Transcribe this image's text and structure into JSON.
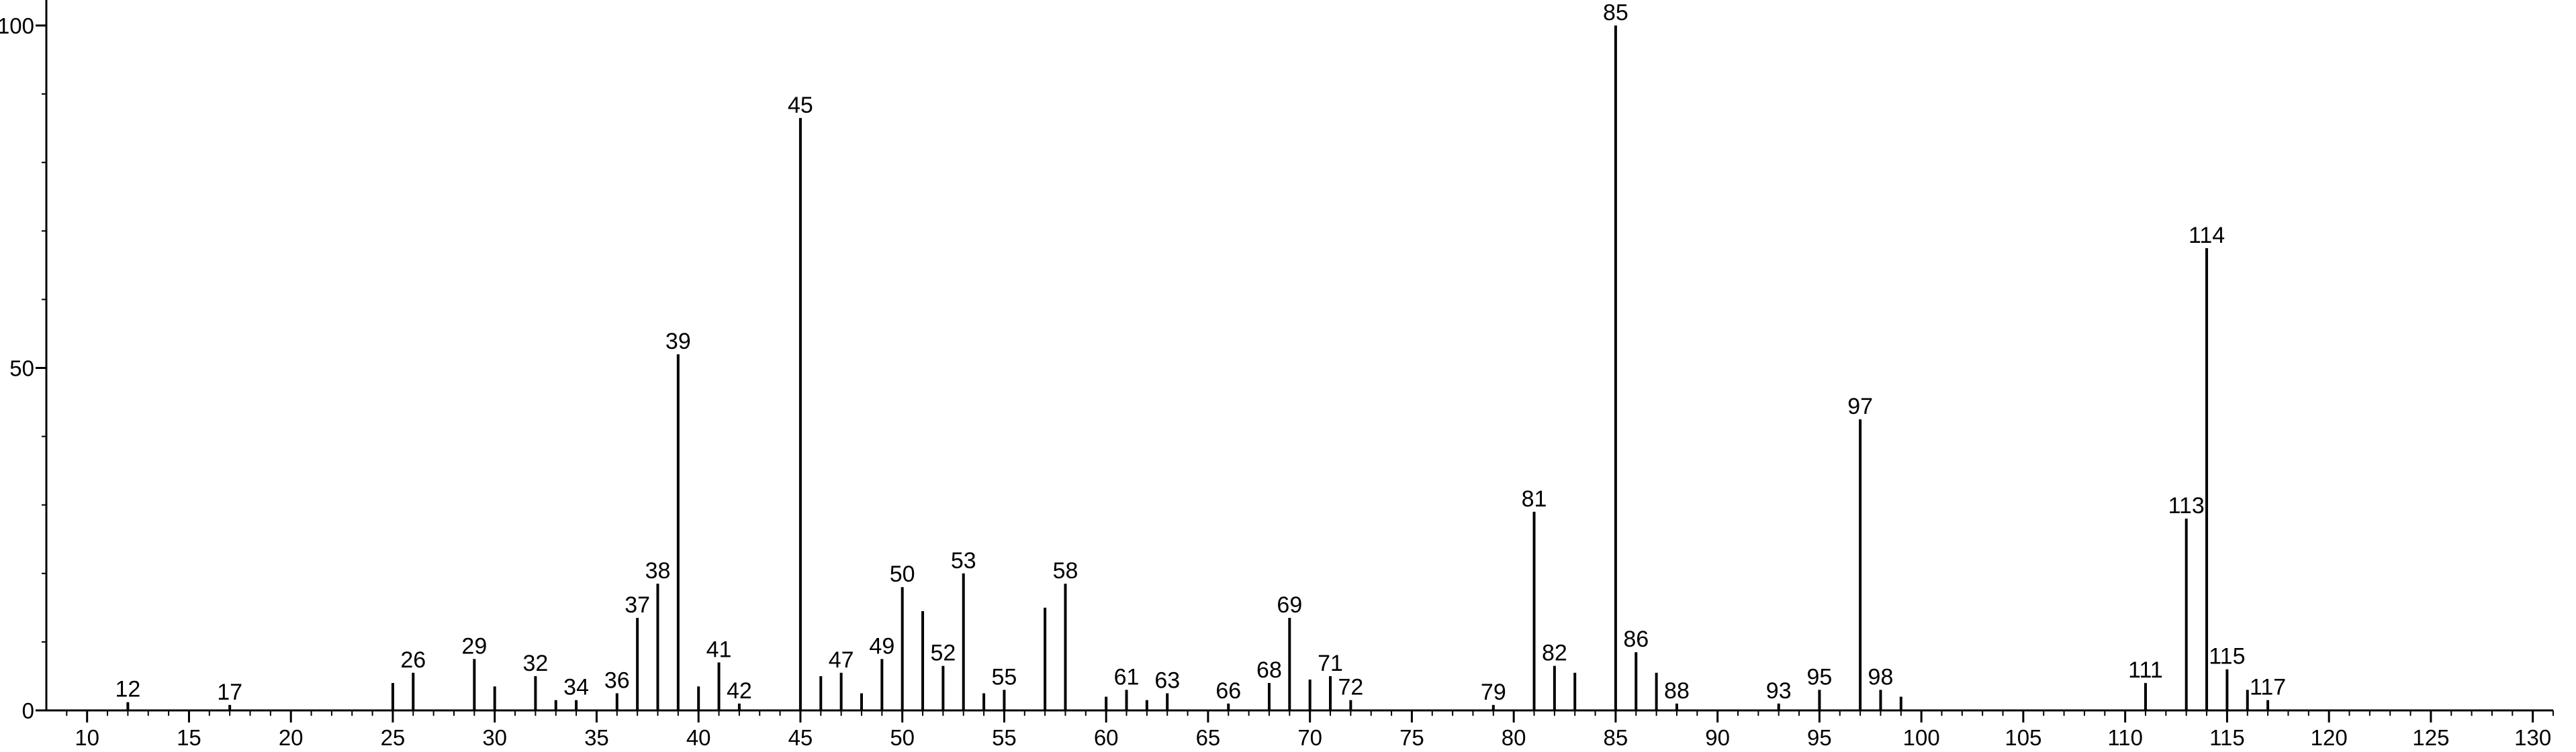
{
  "chart_data": {
    "type": "bar",
    "title": "",
    "xlabel": "",
    "ylabel": "",
    "xlim": [
      8,
      131
    ],
    "ylim": [
      0,
      100
    ],
    "x_ticks": [
      10,
      15,
      20,
      25,
      30,
      35,
      40,
      45,
      50,
      55,
      60,
      65,
      70,
      75,
      80,
      85,
      90,
      95,
      100,
      105,
      110,
      115,
      120,
      125,
      130
    ],
    "y_ticks": [
      0,
      50,
      100
    ],
    "grid": false,
    "legend": "none",
    "colors": {
      "bars": "#000000",
      "axes": "#000000",
      "background": "#ffffff"
    },
    "peaks": [
      {
        "mz": 12,
        "intensity": 1.2,
        "label": "12"
      },
      {
        "mz": 17,
        "intensity": 0.8,
        "label": "17"
      },
      {
        "mz": 25,
        "intensity": 4,
        "label": ""
      },
      {
        "mz": 26,
        "intensity": 5.5,
        "label": "26"
      },
      {
        "mz": 29,
        "intensity": 7.5,
        "label": "29"
      },
      {
        "mz": 30,
        "intensity": 3.5,
        "label": ""
      },
      {
        "mz": 32,
        "intensity": 5,
        "label": "32"
      },
      {
        "mz": 33,
        "intensity": 1.5,
        "label": ""
      },
      {
        "mz": 34,
        "intensity": 1.5,
        "label": "34"
      },
      {
        "mz": 36,
        "intensity": 2.5,
        "label": "36"
      },
      {
        "mz": 37,
        "intensity": 13.5,
        "label": "37"
      },
      {
        "mz": 38,
        "intensity": 18.5,
        "label": "38"
      },
      {
        "mz": 39,
        "intensity": 52,
        "label": "39"
      },
      {
        "mz": 40,
        "intensity": 3.5,
        "label": ""
      },
      {
        "mz": 41,
        "intensity": 7,
        "label": "41"
      },
      {
        "mz": 42,
        "intensity": 1,
        "label": "42"
      },
      {
        "mz": 45,
        "intensity": 86.5,
        "label": "45"
      },
      {
        "mz": 46,
        "intensity": 5,
        "label": ""
      },
      {
        "mz": 47,
        "intensity": 5.5,
        "label": "47"
      },
      {
        "mz": 48,
        "intensity": 2.5,
        "label": ""
      },
      {
        "mz": 49,
        "intensity": 7.5,
        "label": "49"
      },
      {
        "mz": 50,
        "intensity": 18,
        "label": "50"
      },
      {
        "mz": 51,
        "intensity": 14.5,
        "label": ""
      },
      {
        "mz": 52,
        "intensity": 6.5,
        "label": "52"
      },
      {
        "mz": 53,
        "intensity": 20,
        "label": "53"
      },
      {
        "mz": 54,
        "intensity": 2.5,
        "label": ""
      },
      {
        "mz": 55,
        "intensity": 3,
        "label": "55"
      },
      {
        "mz": 57,
        "intensity": 15,
        "label": ""
      },
      {
        "mz": 58,
        "intensity": 18.5,
        "label": "58"
      },
      {
        "mz": 60,
        "intensity": 2,
        "label": ""
      },
      {
        "mz": 61,
        "intensity": 3,
        "label": "61"
      },
      {
        "mz": 62,
        "intensity": 1.5,
        "label": ""
      },
      {
        "mz": 63,
        "intensity": 2.5,
        "label": "63"
      },
      {
        "mz": 66,
        "intensity": 1,
        "label": "66"
      },
      {
        "mz": 68,
        "intensity": 4,
        "label": "68"
      },
      {
        "mz": 69,
        "intensity": 13.5,
        "label": "69"
      },
      {
        "mz": 70,
        "intensity": 4.5,
        "label": ""
      },
      {
        "mz": 71,
        "intensity": 5,
        "label": "71"
      },
      {
        "mz": 72,
        "intensity": 1.5,
        "label": "72"
      },
      {
        "mz": 79,
        "intensity": 0.8,
        "label": "79"
      },
      {
        "mz": 81,
        "intensity": 29,
        "label": "81"
      },
      {
        "mz": 82,
        "intensity": 6.5,
        "label": "82"
      },
      {
        "mz": 83,
        "intensity": 5.5,
        "label": ""
      },
      {
        "mz": 85,
        "intensity": 100,
        "label": "85"
      },
      {
        "mz": 86,
        "intensity": 8.5,
        "label": "86"
      },
      {
        "mz": 87,
        "intensity": 5.5,
        "label": ""
      },
      {
        "mz": 88,
        "intensity": 1,
        "label": "88"
      },
      {
        "mz": 93,
        "intensity": 1,
        "label": "93"
      },
      {
        "mz": 95,
        "intensity": 3,
        "label": "95"
      },
      {
        "mz": 97,
        "intensity": 42.5,
        "label": "97"
      },
      {
        "mz": 98,
        "intensity": 3,
        "label": "98"
      },
      {
        "mz": 99,
        "intensity": 2,
        "label": ""
      },
      {
        "mz": 111,
        "intensity": 4,
        "label": "111"
      },
      {
        "mz": 113,
        "intensity": 28,
        "label": "113"
      },
      {
        "mz": 114,
        "intensity": 67.5,
        "label": "114"
      },
      {
        "mz": 115,
        "intensity": 6,
        "label": "115"
      },
      {
        "mz": 116,
        "intensity": 3,
        "label": ""
      },
      {
        "mz": 117,
        "intensity": 1.5,
        "label": "117"
      }
    ]
  }
}
